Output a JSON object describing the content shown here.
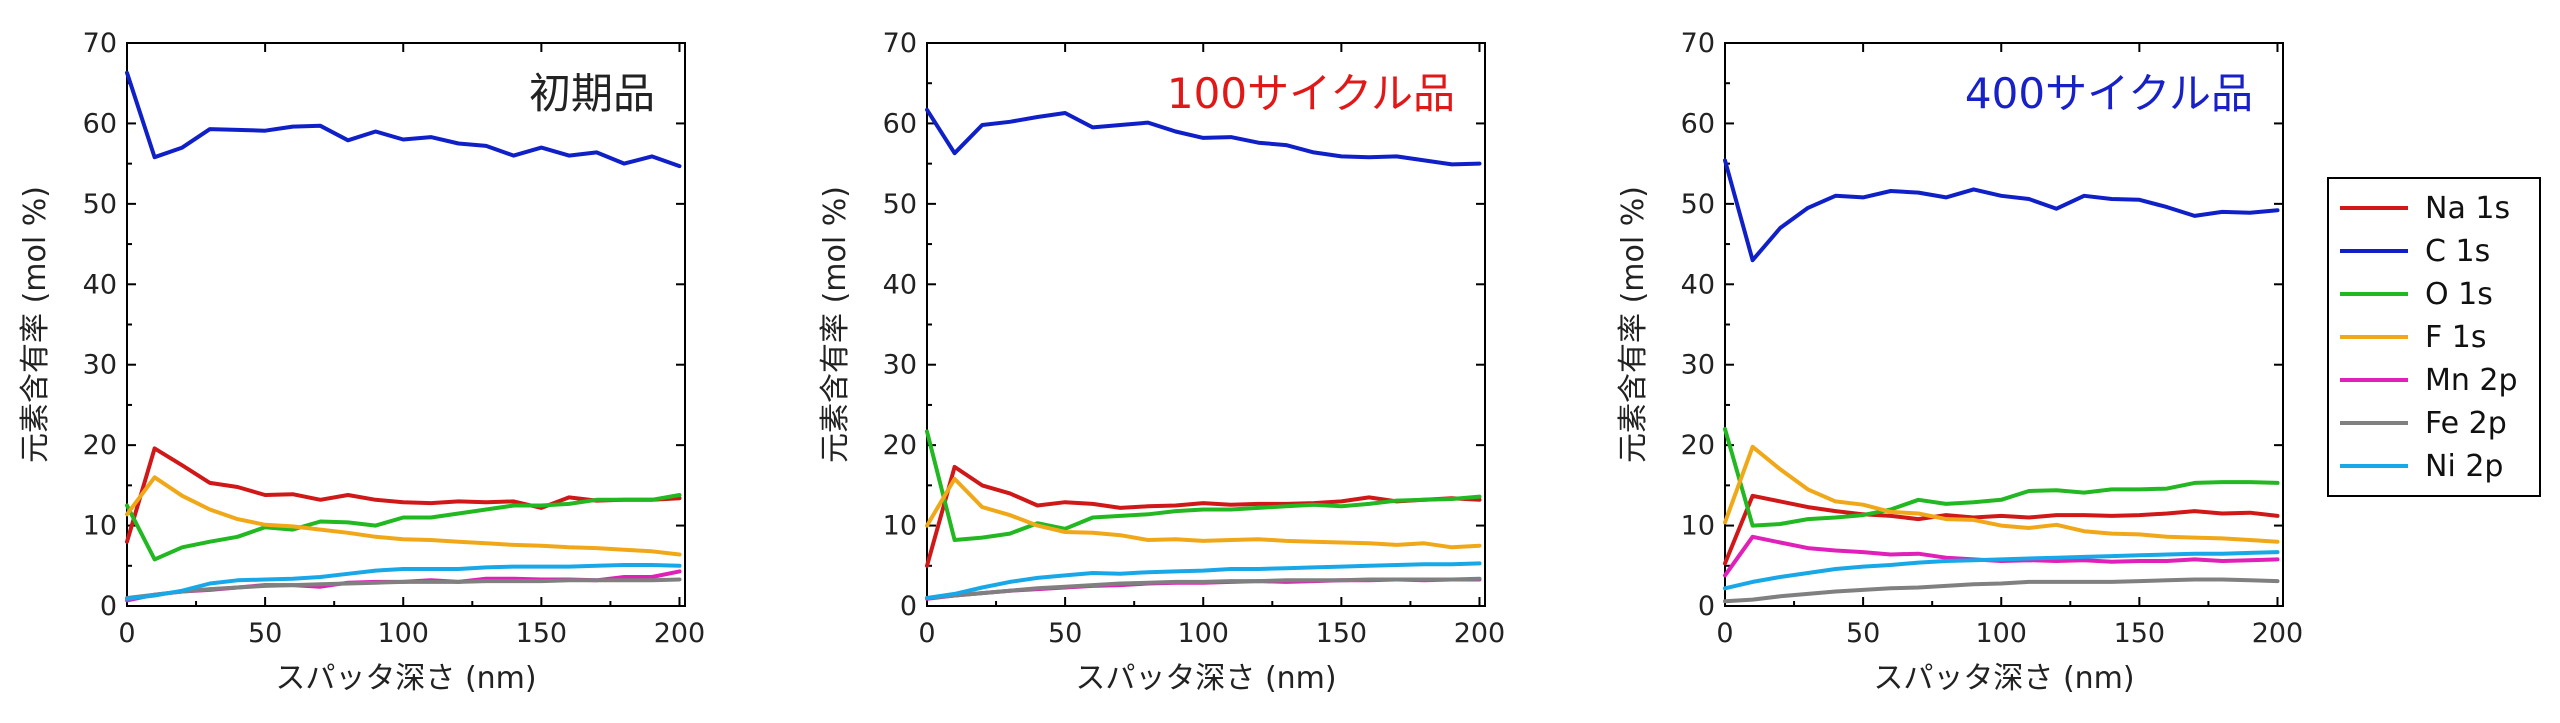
{
  "chart_data": [
    {
      "type": "line",
      "title": "初期品",
      "title_color": "#222222",
      "xlabel": "スパッタ深さ (nm)",
      "ylabel": "元素含有率 (mol %)",
      "xlim": [
        0,
        202
      ],
      "ylim": [
        0,
        70
      ],
      "xticks": [
        "0",
        "50",
        "100",
        "150",
        "200"
      ],
      "yticks": [
        "0",
        "10",
        "20",
        "30",
        "40",
        "50",
        "60",
        "70"
      ],
      "x": [
        0,
        10,
        20,
        30,
        40,
        50,
        60,
        70,
        80,
        90,
        100,
        110,
        120,
        130,
        140,
        150,
        160,
        170,
        180,
        190,
        200
      ],
      "series": [
        {
          "name": "Na 1s",
          "color": "#d01818",
          "values": [
            8,
            19.6,
            17.5,
            15.3,
            14.8,
            13.8,
            13.9,
            13.2,
            13.8,
            13.2,
            12.9,
            12.8,
            13.0,
            12.9,
            13.0,
            12.2,
            13.5,
            13.1,
            13.2,
            13.2,
            13.4
          ]
        },
        {
          "name": "C 1s",
          "color": "#1020c8",
          "values": [
            66.3,
            55.8,
            57.0,
            59.3,
            59.2,
            59.1,
            59.6,
            59.7,
            57.9,
            59.0,
            58.0,
            58.3,
            57.5,
            57.2,
            56.0,
            57.0,
            56.0,
            56.4,
            55.0,
            55.9,
            54.7
          ]
        },
        {
          "name": "O 1s",
          "color": "#22b822",
          "values": [
            12.5,
            5.8,
            7.3,
            8.0,
            8.6,
            9.8,
            9.5,
            10.5,
            10.4,
            10.0,
            11.0,
            11.0,
            11.5,
            12.0,
            12.5,
            12.5,
            12.7,
            13.2,
            13.2,
            13.2,
            13.8
          ]
        },
        {
          "name": "F 1s",
          "color": "#f0a818",
          "values": [
            11.4,
            16.0,
            13.7,
            12.0,
            10.8,
            10.1,
            9.9,
            9.5,
            9.1,
            8.6,
            8.3,
            8.2,
            8.0,
            7.8,
            7.6,
            7.5,
            7.3,
            7.2,
            7.0,
            6.8,
            6.4
          ]
        },
        {
          "name": "Mn 2p",
          "color": "#e020b8",
          "values": [
            0.7,
            1.4,
            1.8,
            2.0,
            2.3,
            2.6,
            2.6,
            2.4,
            2.9,
            3.0,
            3.0,
            3.2,
            3.0,
            3.4,
            3.4,
            3.3,
            3.3,
            3.2,
            3.6,
            3.6,
            4.3
          ]
        },
        {
          "name": "Fe 2p",
          "color": "#808080",
          "values": [
            1.0,
            1.4,
            1.8,
            2.1,
            2.3,
            2.5,
            2.6,
            2.7,
            2.8,
            2.9,
            3.0,
            3.0,
            3.0,
            3.1,
            3.1,
            3.1,
            3.2,
            3.2,
            3.2,
            3.2,
            3.3
          ]
        },
        {
          "name": "Ni 2p",
          "color": "#18a8e8",
          "values": [
            0.9,
            1.3,
            1.9,
            2.8,
            3.2,
            3.3,
            3.4,
            3.6,
            4.0,
            4.4,
            4.6,
            4.6,
            4.6,
            4.8,
            4.9,
            4.9,
            4.9,
            5.0,
            5.1,
            5.1,
            5.0
          ]
        }
      ]
    },
    {
      "type": "line",
      "title": "100サイクル品",
      "title_color": "#e01818",
      "xlabel": "スパッタ深さ (nm)",
      "ylabel": "元素含有率 (mol %)",
      "xlim": [
        0,
        202
      ],
      "ylim": [
        0,
        70
      ],
      "xticks": [
        "0",
        "50",
        "100",
        "150",
        "200"
      ],
      "yticks": [
        "0",
        "10",
        "20",
        "30",
        "40",
        "50",
        "60",
        "70"
      ],
      "x": [
        0,
        10,
        20,
        30,
        40,
        50,
        60,
        70,
        80,
        90,
        100,
        110,
        120,
        130,
        140,
        150,
        160,
        170,
        180,
        190,
        200
      ],
      "series": [
        {
          "name": "Na 1s",
          "color": "#d01818",
          "values": [
            5,
            17.3,
            15.0,
            14.0,
            12.5,
            12.9,
            12.7,
            12.2,
            12.4,
            12.5,
            12.8,
            12.6,
            12.7,
            12.7,
            12.8,
            13.0,
            13.5,
            13.0,
            13.2,
            13.4,
            13.2
          ]
        },
        {
          "name": "C 1s",
          "color": "#1020c8",
          "values": [
            61.7,
            56.3,
            59.8,
            60.2,
            60.8,
            61.3,
            59.5,
            59.8,
            60.1,
            59.0,
            58.2,
            58.3,
            57.6,
            57.3,
            56.4,
            55.9,
            55.8,
            55.9,
            55.4,
            54.9,
            55.0
          ]
        },
        {
          "name": "O 1s",
          "color": "#22b822",
          "values": [
            21.7,
            8.2,
            8.5,
            9.0,
            10.3,
            9.6,
            11.0,
            11.2,
            11.4,
            11.8,
            12.0,
            12.0,
            12.2,
            12.4,
            12.6,
            12.4,
            12.7,
            13.1,
            13.2,
            13.3,
            13.6
          ]
        },
        {
          "name": "F 1s",
          "color": "#f0a818",
          "values": [
            10.0,
            15.8,
            12.3,
            11.3,
            10.0,
            9.2,
            9.1,
            8.8,
            8.2,
            8.3,
            8.1,
            8.2,
            8.3,
            8.1,
            8.0,
            7.9,
            7.8,
            7.6,
            7.8,
            7.3,
            7.5
          ]
        },
        {
          "name": "Mn 2p",
          "color": "#e020b8",
          "values": [
            0.9,
            1.3,
            1.6,
            1.9,
            2.1,
            2.3,
            2.5,
            2.6,
            2.8,
            2.9,
            2.9,
            3.0,
            3.1,
            3.0,
            3.1,
            3.2,
            3.2,
            3.3,
            3.2,
            3.3,
            3.3
          ]
        },
        {
          "name": "Fe 2p",
          "color": "#808080",
          "values": [
            1.0,
            1.3,
            1.6,
            1.9,
            2.2,
            2.4,
            2.6,
            2.8,
            2.9,
            3.0,
            3.0,
            3.1,
            3.1,
            3.2,
            3.2,
            3.2,
            3.3,
            3.3,
            3.3,
            3.3,
            3.4
          ]
        },
        {
          "name": "Ni 2p",
          "color": "#18a8e8",
          "values": [
            1.0,
            1.5,
            2.3,
            3.0,
            3.5,
            3.8,
            4.1,
            4.0,
            4.2,
            4.3,
            4.4,
            4.6,
            4.6,
            4.7,
            4.8,
            4.9,
            5.0,
            5.1,
            5.2,
            5.2,
            5.3
          ]
        }
      ]
    },
    {
      "type": "line",
      "title": "400サイクル品",
      "title_color": "#1820c8",
      "xlabel": "スパッタ深さ (nm)",
      "ylabel": "元素含有率 (mol %)",
      "xlim": [
        0,
        202
      ],
      "ylim": [
        0,
        70
      ],
      "xticks": [
        "0",
        "50",
        "100",
        "150",
        "200"
      ],
      "yticks": [
        "0",
        "10",
        "20",
        "30",
        "40",
        "50",
        "60",
        "70"
      ],
      "x": [
        0,
        10,
        20,
        30,
        40,
        50,
        60,
        70,
        80,
        90,
        100,
        110,
        120,
        130,
        140,
        150,
        160,
        170,
        180,
        190,
        200
      ],
      "series": [
        {
          "name": "Na 1s",
          "color": "#d01818",
          "values": [
            5.3,
            13.7,
            13.0,
            12.3,
            11.8,
            11.4,
            11.2,
            10.8,
            11.3,
            11.0,
            11.2,
            11.0,
            11.3,
            11.3,
            11.2,
            11.3,
            11.5,
            11.8,
            11.5,
            11.6,
            11.2
          ]
        },
        {
          "name": "C 1s",
          "color": "#1020c8",
          "values": [
            55.4,
            43.0,
            47.0,
            49.5,
            51.0,
            50.8,
            51.6,
            51.4,
            50.8,
            51.8,
            51.0,
            50.6,
            49.4,
            51.0,
            50.6,
            50.5,
            49.6,
            48.5,
            49.0,
            48.9,
            49.2
          ]
        },
        {
          "name": "O 1s",
          "color": "#22b822",
          "values": [
            22.0,
            10.0,
            10.2,
            10.8,
            11.0,
            11.3,
            12.0,
            13.2,
            12.7,
            12.9,
            13.2,
            14.3,
            14.4,
            14.1,
            14.5,
            14.5,
            14.6,
            15.3,
            15.4,
            15.4,
            15.3
          ]
        },
        {
          "name": "F 1s",
          "color": "#f0a818",
          "values": [
            10.4,
            19.8,
            17.0,
            14.5,
            13.0,
            12.6,
            11.7,
            11.5,
            10.8,
            10.7,
            10.0,
            9.7,
            10.1,
            9.3,
            9.0,
            8.9,
            8.6,
            8.5,
            8.4,
            8.2,
            8.0
          ]
        },
        {
          "name": "Mn 2p",
          "color": "#e020b8",
          "values": [
            3.8,
            8.6,
            7.9,
            7.2,
            6.9,
            6.7,
            6.4,
            6.5,
            6.0,
            5.8,
            5.6,
            5.7,
            5.6,
            5.7,
            5.5,
            5.6,
            5.6,
            5.8,
            5.6,
            5.7,
            5.8
          ]
        },
        {
          "name": "Fe 2p",
          "color": "#808080",
          "values": [
            0.6,
            0.8,
            1.2,
            1.5,
            1.8,
            2.0,
            2.2,
            2.3,
            2.5,
            2.7,
            2.8,
            3.0,
            3.0,
            3.0,
            3.0,
            3.1,
            3.2,
            3.3,
            3.3,
            3.2,
            3.1
          ]
        },
        {
          "name": "Ni 2p",
          "color": "#18a8e8",
          "values": [
            2.2,
            3.0,
            3.6,
            4.1,
            4.6,
            4.9,
            5.1,
            5.4,
            5.6,
            5.7,
            5.8,
            5.9,
            6.0,
            6.1,
            6.2,
            6.3,
            6.4,
            6.5,
            6.5,
            6.6,
            6.7
          ]
        }
      ]
    }
  ],
  "legend": {
    "position": "right",
    "entries": [
      {
        "label": "Na 1s",
        "color": "#d01818"
      },
      {
        "label": "C 1s",
        "color": "#1020c8"
      },
      {
        "label": "O 1s",
        "color": "#22b822"
      },
      {
        "label": "F 1s",
        "color": "#f0a818"
      },
      {
        "label": "Mn 2p",
        "color": "#e020b8"
      },
      {
        "label": "Fe 2p",
        "color": "#808080"
      },
      {
        "label": "Ni 2p",
        "color": "#18a8e8"
      }
    ]
  }
}
